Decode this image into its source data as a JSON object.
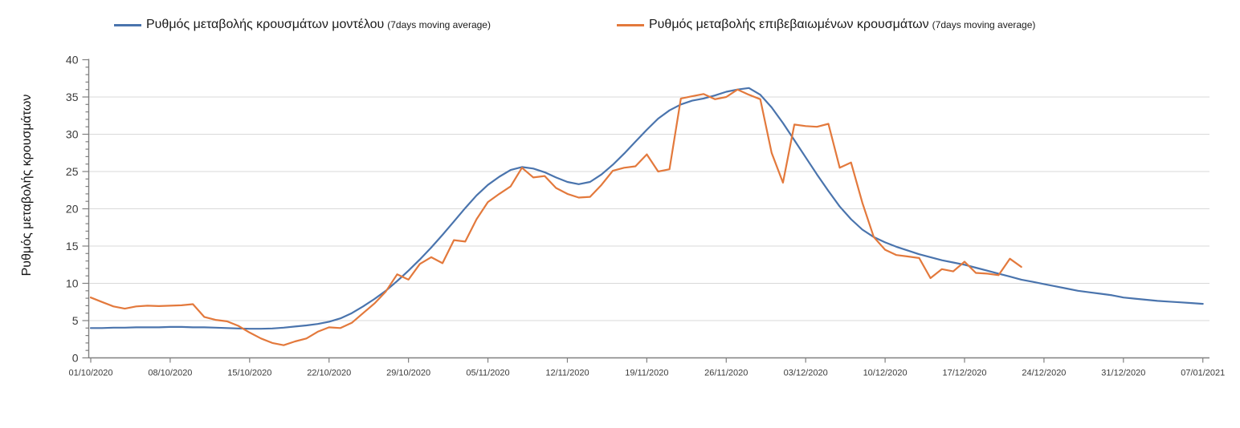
{
  "legend": {
    "series1": {
      "label": "Ρυθμός μεταβολής κρουσμάτων μοντέλου",
      "sub": "(7days moving average)",
      "color": "#4a74ad"
    },
    "series2": {
      "label": "Ρυθμός μεταβολής επιβεβαιωμένων κρουσμάτων",
      "sub": "(7days moving average)",
      "color": "#e3793c"
    }
  },
  "y_axis": {
    "title": "Ρυθμός μεταβολής κρουσμάτων",
    "tick_labels": [
      "0",
      "5",
      "10",
      "15",
      "20",
      "25",
      "30",
      "35",
      "40"
    ],
    "min": 0,
    "max": 40,
    "major_step": 5,
    "minor_step": 1
  },
  "x_axis": {
    "tick_labels": [
      "01/10/2020",
      "08/10/2020",
      "15/10/2020",
      "22/10/2020",
      "29/10/2020",
      "05/11/2020",
      "12/11/2020",
      "19/11/2020",
      "26/11/2020",
      "03/12/2020",
      "10/12/2020",
      "17/12/2020",
      "24/12/2020",
      "31/12/2020",
      "07/01/2021"
    ],
    "days_per_tick": 7
  },
  "colors": {
    "model_line": "#4a74ad",
    "confirmed_line": "#e3793c",
    "gridline": "#d9d9d9",
    "axis": "#808080",
    "tick_text": "#3a3a3a"
  },
  "chart_data": {
    "type": "line",
    "title": "",
    "ylabel": "Ρυθμός μεταβολής κρουσμάτων",
    "ylim": [
      0,
      40
    ],
    "grid": "horizontal",
    "legend_position": "top",
    "x_tick_labels": [
      "01/10/2020",
      "08/10/2020",
      "15/10/2020",
      "22/10/2020",
      "29/10/2020",
      "05/11/2020",
      "12/11/2020",
      "19/11/2020",
      "26/11/2020",
      "03/12/2020",
      "10/12/2020",
      "17/12/2020",
      "24/12/2020",
      "31/12/2020",
      "07/01/2021"
    ],
    "x_unit": "day",
    "days_per_tick": 7,
    "series": [
      {
        "name": "Ρυθμός μεταβολής κρουσμάτων μοντέλου (7days moving average)",
        "color": "#4a74ad",
        "start_day": 0,
        "values": [
          4.0,
          4.0,
          4.05,
          4.05,
          4.1,
          4.1,
          4.1,
          4.15,
          4.15,
          4.1,
          4.1,
          4.05,
          4.0,
          3.95,
          3.9,
          3.9,
          3.95,
          4.05,
          4.2,
          4.35,
          4.55,
          4.85,
          5.3,
          6.0,
          6.9,
          7.9,
          9.0,
          10.3,
          11.7,
          13.2,
          14.8,
          16.5,
          18.3,
          20.1,
          21.8,
          23.2,
          24.3,
          25.2,
          25.6,
          25.4,
          24.9,
          24.2,
          23.6,
          23.3,
          23.6,
          24.6,
          25.9,
          27.4,
          29.0,
          30.6,
          32.1,
          33.2,
          34.0,
          34.5,
          34.8,
          35.2,
          35.7,
          36.0,
          36.2,
          35.3,
          33.6,
          31.5,
          29.2,
          26.9,
          24.6,
          22.4,
          20.3,
          18.6,
          17.2,
          16.2,
          15.5,
          14.9,
          14.4,
          13.9,
          13.5,
          13.1,
          12.8,
          12.5,
          12.1,
          11.7,
          11.3,
          10.9,
          10.5,
          10.2,
          9.9,
          9.6,
          9.3,
          9.0,
          8.8,
          8.6,
          8.4,
          8.1,
          7.95,
          7.8,
          7.65,
          7.55,
          7.45,
          7.35,
          7.25
        ]
      },
      {
        "name": "Ρυθμός μεταβολής επιβεβαιωμένων κρουσμάτων (7days moving average)",
        "color": "#e3793c",
        "start_day": 0,
        "values": [
          8.1,
          7.5,
          6.9,
          6.6,
          6.9,
          7.0,
          6.95,
          7.0,
          7.05,
          7.2,
          5.5,
          5.1,
          4.9,
          4.3,
          3.4,
          2.6,
          2.0,
          1.7,
          2.2,
          2.6,
          3.5,
          4.1,
          4.0,
          4.7,
          6.0,
          7.3,
          8.9,
          11.2,
          10.5,
          12.6,
          13.5,
          12.7,
          15.8,
          15.6,
          18.6,
          20.9,
          22.0,
          23.0,
          25.5,
          24.2,
          24.4,
          22.8,
          22.0,
          21.5,
          21.6,
          23.2,
          25.1,
          25.5,
          25.7,
          27.3,
          25.0,
          25.3,
          34.8,
          35.1,
          35.4,
          34.7,
          35.0,
          36.0,
          35.3,
          34.7,
          27.5,
          23.5,
          31.3,
          31.1,
          31.0,
          31.4,
          25.5,
          26.2,
          20.8,
          16.2,
          14.5,
          13.8,
          13.6,
          13.4,
          10.7,
          11.9,
          11.6,
          12.9,
          11.4,
          11.3,
          11.1,
          13.3,
          12.2
        ]
      }
    ]
  }
}
